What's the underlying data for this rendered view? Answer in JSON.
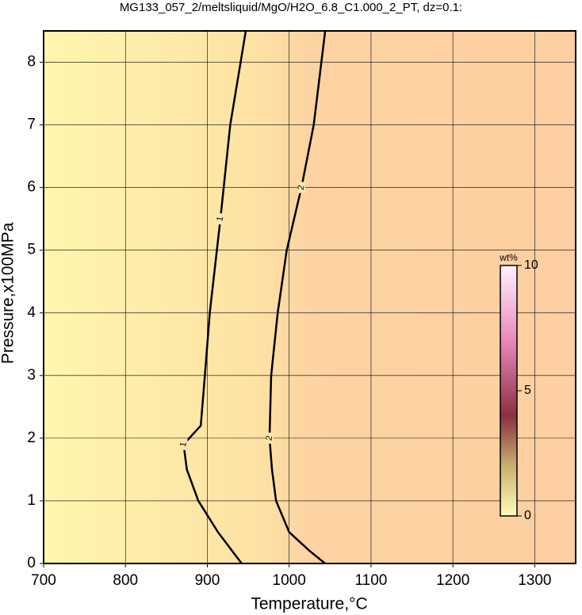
{
  "chart_data": {
    "type": "contour",
    "title": "MG133_057_2/meltsliquid/MgO/H2O_6.8_C1.000_2_PT, dz=0.1:",
    "xlabel": "Temperature,°C",
    "ylabel": "Pressure,x100MPa",
    "xlim": [
      700,
      1350
    ],
    "xticks": [
      700,
      800,
      900,
      1000,
      1100,
      1200,
      1300
    ],
    "ylim": [
      0,
      8.5
    ],
    "yticks": [
      0,
      1,
      2,
      3,
      4,
      5,
      6,
      7,
      8
    ],
    "grid": true,
    "series": [
      {
        "name": "1",
        "color": "#000000",
        "x": [
          942,
          913,
          889,
          875,
          871,
          892,
          897,
          903,
          916,
          928,
          947
        ],
        "values": [
          0,
          0.5,
          1,
          1.5,
          1.9,
          2.2,
          3,
          4,
          5.5,
          7,
          8.5
        ]
      },
      {
        "name": "2",
        "color": "#000000",
        "x": [
          1044,
          1025,
          1000,
          984,
          979,
          976,
          978,
          986,
          997,
          1015,
          1030,
          1044
        ],
        "values": [
          0,
          0.2,
          0.5,
          1,
          1.5,
          2,
          3,
          4,
          5,
          6,
          7,
          8.5
        ]
      }
    ],
    "colorbar": {
      "label": "wt%",
      "lim": [
        0,
        10
      ],
      "ticks": [
        0,
        5,
        10
      ]
    }
  }
}
